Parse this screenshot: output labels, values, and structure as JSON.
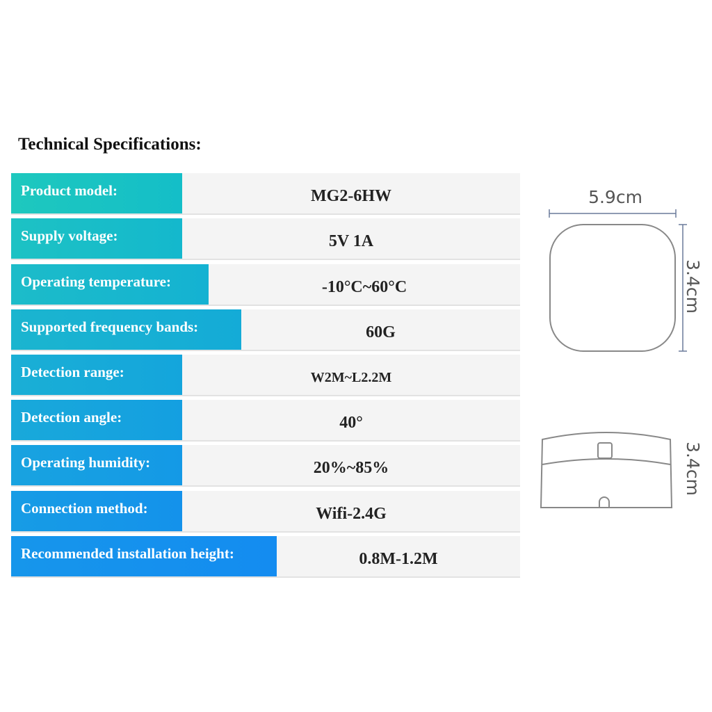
{
  "title": "Technical Specifications:",
  "rows": [
    {
      "label": "Product model:",
      "value": "MG2-6HW"
    },
    {
      "label": "Supply voltage:",
      "value": "5V 1A"
    },
    {
      "label": "Operating temperature:",
      "value": "-10°C~60°C"
    },
    {
      "label": "Supported frequency bands:",
      "value": "60G"
    },
    {
      "label": "Detection range:",
      "value": "W2M~L2.2M"
    },
    {
      "label": "Detection angle:",
      "value": "40°"
    },
    {
      "label": "Operating humidity:",
      "value": "20%~85%"
    },
    {
      "label": "Connection method:",
      "value": "Wifi-2.4G"
    },
    {
      "label": "Recommended installation height:",
      "value": "0.8M-1.2M"
    }
  ],
  "dimensions": {
    "width": "5.9cm",
    "height": "3.4cm",
    "side_height": "3.4cm"
  }
}
